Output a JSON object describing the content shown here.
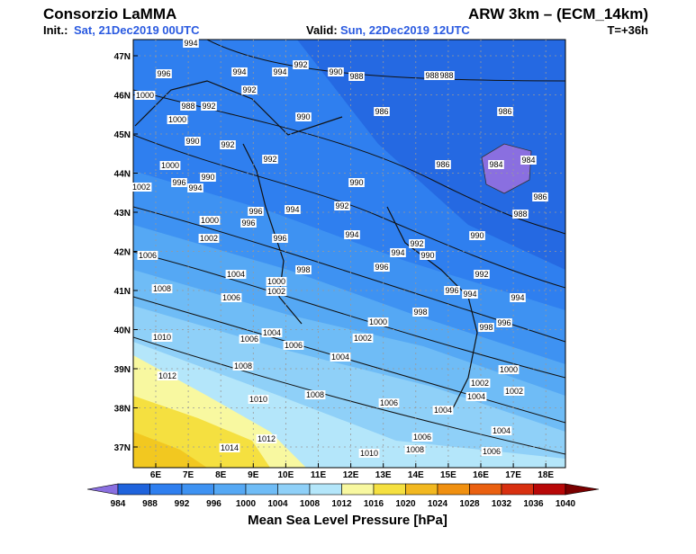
{
  "header": {
    "title": "Consorzio LaMMA",
    "model": "ARW 3km – (ECM_14km)",
    "init_label": "Init.:",
    "init_value": "Sat, 21Dec2019 00UTC",
    "valid_label": "Valid:",
    "valid_value": "Sun, 22Dec2019 12UTC",
    "step": "T=+36h"
  },
  "map": {
    "lon_labels": [
      "6E",
      "7E",
      "8E",
      "9E",
      "10E",
      "11E",
      "12E",
      "13E",
      "14E",
      "15E",
      "16E",
      "17E",
      "18E"
    ],
    "lat_labels": [
      "47N",
      "46N",
      "45N",
      "44N",
      "43N",
      "42N",
      "41N",
      "40N",
      "39N",
      "38N",
      "37N"
    ],
    "contour_labels": [
      "994",
      "996",
      "994",
      "994",
      "992",
      "990",
      "988",
      "988",
      "988",
      "1000",
      "988",
      "992",
      "992",
      "1000",
      "990",
      "992",
      "990",
      "986",
      "986",
      "1000",
      "996",
      "990",
      "992",
      "986",
      "984",
      "984",
      "1002",
      "994",
      "990",
      "986",
      "996",
      "994",
      "992",
      "988",
      "1000",
      "996",
      "1002",
      "996",
      "994",
      "990",
      "992",
      "994",
      "990",
      "1006",
      "996",
      "998",
      "992",
      "1004",
      "1000",
      "1002",
      "1008",
      "996",
      "994",
      "994",
      "1006",
      "998",
      "1000",
      "998",
      "996",
      "1010",
      "1006",
      "1004",
      "1002",
      "1006",
      "1004",
      "1008",
      "1000",
      "1012",
      "1002",
      "1002",
      "1008",
      "1004",
      "1010",
      "1006",
      "1004",
      "1014",
      "1012",
      "1010",
      "1008",
      "1006",
      "1004",
      "1006"
    ]
  },
  "colorbar": {
    "labels": [
      984,
      988,
      992,
      996,
      1000,
      1004,
      1008,
      1012,
      1016,
      1020,
      1024,
      1028,
      1032,
      1036,
      1040
    ],
    "colors": [
      "#8a6fe0",
      "#1f63dc",
      "#2f7fef",
      "#3e92f2",
      "#55a8f4",
      "#6fbcf6",
      "#8fd0f8",
      "#b4e6fa",
      "#f8f8a0",
      "#f5e040",
      "#f2b820",
      "#f09010",
      "#ea6010",
      "#d83010",
      "#b80808",
      "#7a0000"
    ],
    "title": "Mean Sea Level Pressure [hPa]"
  }
}
